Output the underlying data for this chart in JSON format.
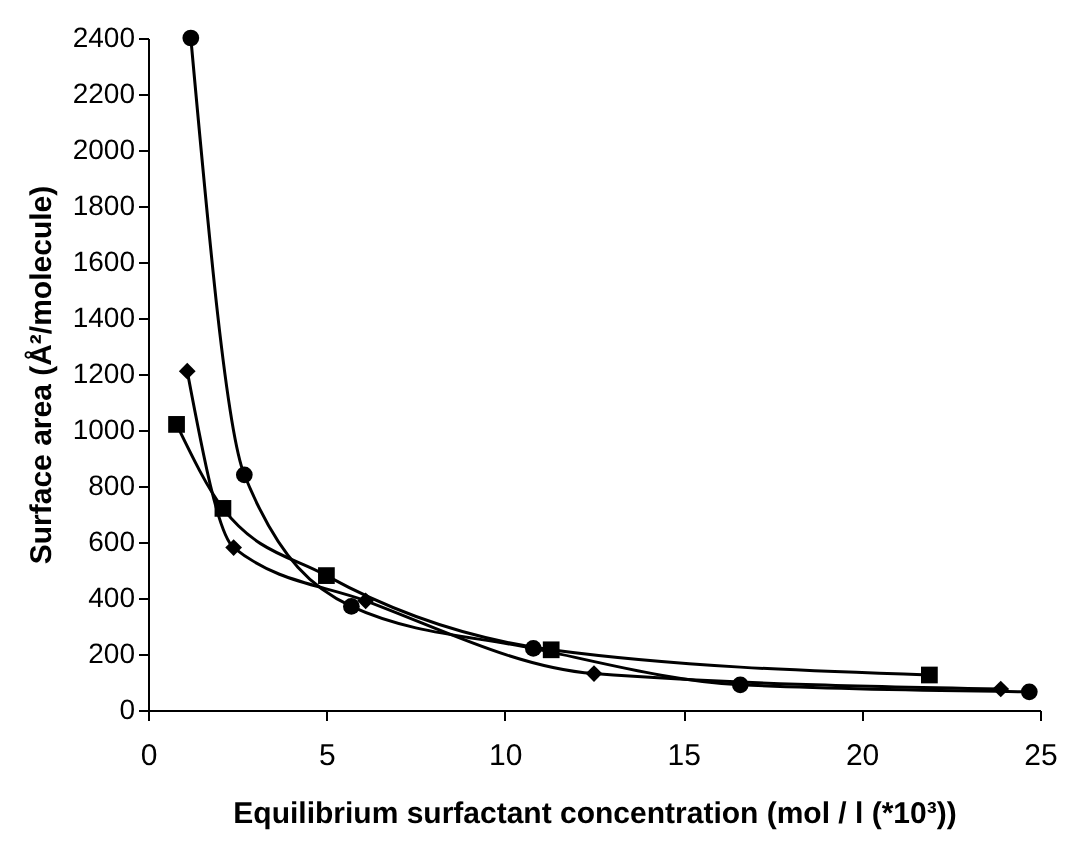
{
  "chart_data": {
    "type": "line",
    "xlabel": "Equilibrium surfactant concentration (mol / l (*10³))",
    "ylabel": "Surface area (Å²/molecule)",
    "xlim": [
      0,
      25
    ],
    "xticks": [
      0,
      5,
      10,
      15,
      20,
      25
    ],
    "ylim": [
      0,
      2400
    ],
    "yticks": [
      0,
      200,
      400,
      600,
      800,
      1000,
      1200,
      1400,
      1600,
      1800,
      2000,
      2200,
      2400
    ],
    "grid": false,
    "line_style": "solid",
    "series": [
      {
        "color": "#000000",
        "marker": "circle",
        "x": [
          1.2,
          2.7,
          5.7,
          10.8,
          16.6,
          24.7
        ],
        "values": [
          2400,
          840,
          370,
          220,
          90,
          65
        ]
      },
      {
        "color": "#000000",
        "marker": "diamond",
        "x": [
          1.1,
          2.4,
          6.1,
          12.5,
          23.9
        ],
        "values": [
          1210,
          580,
          390,
          130,
          75
        ]
      },
      {
        "color": "#000000",
        "marker": "square",
        "x": [
          0.8,
          2.1,
          5.0,
          11.3,
          21.9
        ],
        "values": [
          1020,
          720,
          480,
          215,
          125
        ]
      }
    ]
  }
}
